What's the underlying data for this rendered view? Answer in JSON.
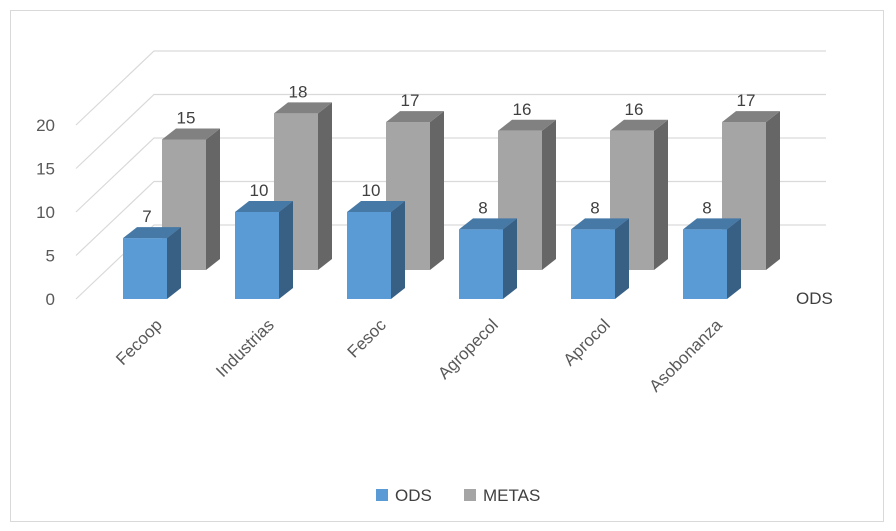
{
  "chart_data": {
    "type": "bar",
    "categories": [
      "Fecoop",
      "Industrias",
      "Fesoc",
      "Agropecol",
      "Aprocol",
      "Asobonanza"
    ],
    "series": [
      {
        "name": "ODS",
        "values": [
          7,
          10,
          10,
          8,
          8,
          8
        ],
        "color": "#5b9bd5"
      },
      {
        "name": "METAS",
        "values": [
          15,
          18,
          17,
          16,
          16,
          17
        ],
        "color": "#a5a5a5"
      }
    ],
    "yticks": [
      "0",
      "5",
      "10",
      "15",
      "20"
    ],
    "ylim": [
      0,
      20
    ],
    "depth_axis_label": "ODS",
    "grid": true,
    "legend_position": "bottom",
    "data_labels": true,
    "style": "3d-clustered-column"
  }
}
